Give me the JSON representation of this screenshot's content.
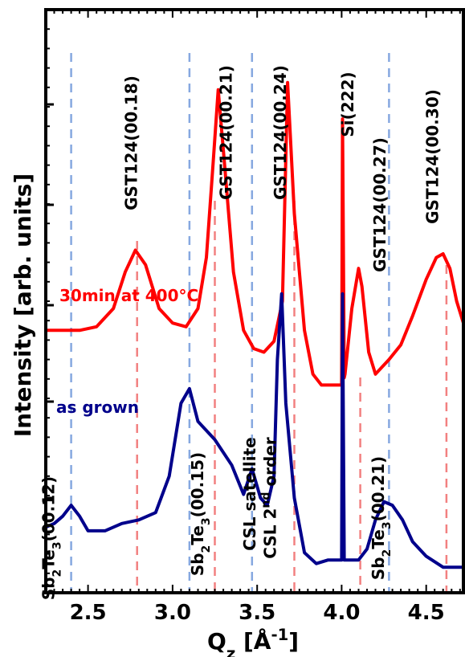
{
  "chart_data": {
    "type": "line",
    "xlabel": {
      "main": "Q",
      "sub": "z",
      "unit_open": " [Å",
      "unit_sup": "-1",
      "unit_close": "]"
    },
    "ylabel": "Intensity [arb. units]",
    "xlim": [
      2.25,
      4.72
    ],
    "x_ticks": [
      "2.5",
      "3.0",
      "3.5",
      "4.0",
      "4.5"
    ],
    "y_scale": "log",
    "grid": false,
    "colors": {
      "red": "#ff0000",
      "blue": "#00008b",
      "red_ref": "#f28080",
      "blue_ref": "#86a8e0"
    },
    "series": [
      {
        "name": "30min at 400°C",
        "color": "#ff0000",
        "x": [
          2.25,
          2.35,
          2.45,
          2.55,
          2.65,
          2.72,
          2.78,
          2.84,
          2.92,
          3.0,
          3.08,
          3.15,
          3.2,
          3.24,
          3.27,
          3.31,
          3.36,
          3.42,
          3.48,
          3.54,
          3.6,
          3.65,
          3.68,
          3.72,
          3.78,
          3.83,
          3.88,
          3.95,
          4.0,
          4.005,
          4.015,
          4.02,
          4.06,
          4.1,
          4.12,
          4.16,
          4.2,
          4.28,
          4.35,
          4.42,
          4.5,
          4.56,
          4.6,
          4.64,
          4.68,
          4.72
        ],
        "y": [
          3.6,
          3.6,
          3.6,
          3.65,
          3.9,
          4.4,
          4.7,
          4.5,
          3.9,
          3.7,
          3.65,
          3.9,
          4.6,
          5.9,
          6.9,
          5.8,
          4.4,
          3.6,
          3.35,
          3.3,
          3.45,
          4.0,
          7.0,
          5.2,
          3.6,
          3.0,
          2.85,
          2.85,
          2.85,
          6.5,
          2.95,
          3.0,
          3.9,
          4.45,
          4.2,
          3.3,
          3.0,
          3.2,
          3.4,
          3.8,
          4.3,
          4.6,
          4.65,
          4.45,
          4.0,
          3.7
        ]
      },
      {
        "name": "as grown",
        "color": "#00008b",
        "x": [
          2.25,
          2.3,
          2.35,
          2.4,
          2.45,
          2.5,
          2.6,
          2.7,
          2.8,
          2.9,
          2.98,
          3.05,
          3.1,
          3.15,
          3.25,
          3.35,
          3.42,
          3.47,
          3.52,
          3.56,
          3.6,
          3.62,
          3.645,
          3.67,
          3.72,
          3.78,
          3.85,
          3.92,
          4.0,
          4.005,
          4.015,
          4.02,
          4.1,
          4.15,
          4.2,
          4.25,
          4.3,
          4.36,
          4.42,
          4.5,
          4.6,
          4.72
        ],
        "y": [
          0.9,
          0.95,
          1.05,
          1.2,
          1.05,
          0.85,
          0.85,
          0.95,
          1.0,
          1.1,
          1.6,
          2.6,
          2.8,
          2.35,
          2.1,
          1.75,
          1.35,
          1.7,
          1.3,
          1.2,
          1.6,
          3.2,
          4.1,
          2.6,
          1.3,
          0.55,
          0.4,
          0.45,
          0.45,
          4.1,
          0.45,
          0.45,
          0.45,
          0.6,
          1.0,
          1.25,
          1.2,
          1.0,
          0.7,
          0.5,
          0.35,
          0.35
        ]
      }
    ],
    "ref_lines": [
      {
        "x": 2.79,
        "color": "#f28080",
        "label": [
          {
            "t": "GST124(00.18)"
          }
        ]
      },
      {
        "x": 3.25,
        "color": "#f28080",
        "label": [
          {
            "t": "GST124(00.21)"
          }
        ]
      },
      {
        "x": 3.72,
        "color": "#f28080",
        "label": [
          {
            "t": "GST124(00.24)"
          }
        ]
      },
      {
        "x": 4.11,
        "color": "#f28080",
        "label": [
          {
            "t": "GST124(00.27)"
          }
        ]
      },
      {
        "x": 4.62,
        "color": "#f28080",
        "label": [
          {
            "t": "GST124(00.30)"
          }
        ]
      },
      {
        "x": 2.4,
        "color": "#86a8e0",
        "label": [
          {
            "t": "Sb"
          },
          {
            "t": "2",
            "sub": true
          },
          {
            "t": "Te"
          },
          {
            "t": "3",
            "sub": true
          },
          {
            "t": "(00.12)"
          }
        ]
      },
      {
        "x": 3.1,
        "color": "#86a8e0",
        "label": [
          {
            "t": "Sb"
          },
          {
            "t": "2",
            "sub": true
          },
          {
            "t": "Te"
          },
          {
            "t": "3",
            "sub": true
          },
          {
            "t": "(00.15)"
          }
        ]
      },
      {
        "x": 3.47,
        "color": "#86a8e0",
        "label": [
          {
            "t": "CSL satellite"
          }
        ]
      },
      {
        "x": 4.28,
        "color": "#86a8e0",
        "label": [
          {
            "t": "Sb"
          },
          {
            "t": "2",
            "sub": true
          },
          {
            "t": "Te"
          },
          {
            "t": "3",
            "sub": true
          },
          {
            "t": "(00.21)"
          }
        ]
      }
    ],
    "annotations": [
      {
        "id": "si222",
        "text": [
          {
            "t": "Si(222)"
          }
        ]
      },
      {
        "id": "csl2",
        "text": [
          {
            "t": "CSL 2"
          },
          {
            "t": "nd",
            "sup": true
          },
          {
            "t": " order"
          }
        ]
      }
    ]
  }
}
